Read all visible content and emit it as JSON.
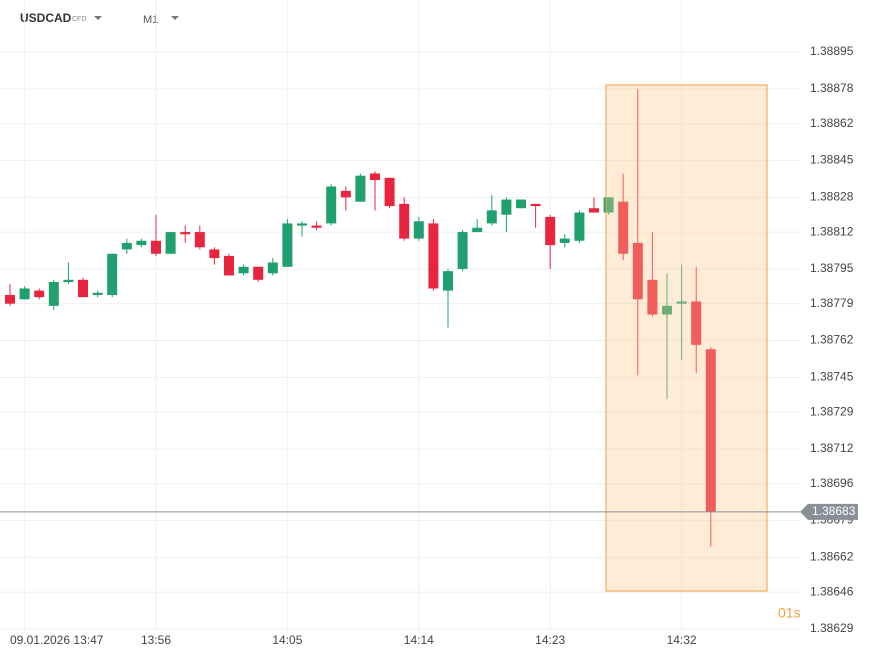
{
  "chart_data": {
    "type": "candlestick",
    "symbol": "USDCAD",
    "symbol_type": "CFD",
    "timeframe": "M1",
    "countdown": "01s",
    "current_price": 1.38683,
    "up_color": "#1fa06e",
    "down_color": "#e8253f",
    "grid": true,
    "ylim": [
      1.38629,
      1.38919
    ],
    "yticks": [
      1.38895,
      1.38878,
      1.38862,
      1.38845,
      1.38828,
      1.38812,
      1.38795,
      1.38779,
      1.38762,
      1.38745,
      1.38729,
      1.38712,
      1.38696,
      1.38679,
      1.38662,
      1.38646,
      1.38629
    ],
    "categories": [
      null,
      "09.01.2026 13:47",
      null,
      null,
      null,
      null,
      null,
      null,
      null,
      null,
      "13:56",
      null,
      null,
      null,
      null,
      null,
      null,
      null,
      null,
      "14:05",
      null,
      null,
      null,
      null,
      null,
      null,
      null,
      null,
      "14:14",
      null,
      null,
      null,
      null,
      null,
      null,
      null,
      null,
      "14:23",
      null,
      null,
      null,
      null,
      null,
      null,
      null,
      null,
      "14:32",
      null,
      null
    ],
    "open": [
      1.38783,
      1.38781,
      1.38785,
      1.38778,
      1.38789,
      1.3879,
      1.38783,
      1.38783,
      1.38804,
      1.38806,
      1.38808,
      1.38802,
      1.38812,
      1.38812,
      1.38804,
      1.38801,
      1.38793,
      1.38796,
      1.38793,
      1.38796,
      1.38815,
      1.38815,
      1.38816,
      1.38831,
      1.38826,
      1.38839,
      1.38837,
      1.38825,
      1.38809,
      1.38816,
      1.38785,
      1.38795,
      1.38812,
      1.38816,
      1.3882,
      1.38823,
      1.38825,
      1.38819,
      1.38807,
      1.38808,
      1.38823,
      1.38821,
      1.38826,
      1.38807,
      1.3879,
      1.38774,
      1.38779,
      1.3878,
      1.38758
    ],
    "high": [
      1.38788,
      1.38787,
      1.38786,
      1.3879,
      1.38798,
      1.38791,
      1.38785,
      1.38802,
      1.38809,
      1.38809,
      1.3882,
      1.38812,
      1.38815,
      1.38815,
      1.38805,
      1.38802,
      1.38797,
      1.38796,
      1.388,
      1.38818,
      1.38817,
      1.38817,
      1.38834,
      1.38833,
      1.38839,
      1.3884,
      1.38837,
      1.38828,
      1.38819,
      1.38818,
      1.38795,
      1.38813,
      1.38818,
      1.38829,
      1.38828,
      1.38827,
      1.38825,
      1.3882,
      1.38811,
      1.38822,
      1.38828,
      1.38828,
      1.38839,
      1.38878,
      1.38812,
      1.38793,
      1.38797,
      1.38796,
      1.38759
    ],
    "low": [
      1.38778,
      1.38781,
      1.38781,
      1.38776,
      1.38788,
      1.38782,
      1.38782,
      1.38782,
      1.38802,
      1.38805,
      1.38801,
      1.38802,
      1.38807,
      1.38804,
      1.38797,
      1.38792,
      1.38792,
      1.38789,
      1.38792,
      1.38796,
      1.3881,
      1.38813,
      1.38815,
      1.38822,
      1.38826,
      1.38822,
      1.38823,
      1.38808,
      1.38808,
      1.38785,
      1.38768,
      1.38794,
      1.38812,
      1.38815,
      1.38812,
      1.38823,
      1.38814,
      1.38795,
      1.38805,
      1.38807,
      1.38821,
      1.3882,
      1.38799,
      1.38746,
      1.38773,
      1.38735,
      1.38753,
      1.38747,
      1.38667
    ],
    "close": [
      1.38779,
      1.38786,
      1.38782,
      1.38789,
      1.3879,
      1.38782,
      1.38784,
      1.38802,
      1.38807,
      1.38808,
      1.38802,
      1.38812,
      1.38811,
      1.38805,
      1.388,
      1.38792,
      1.38796,
      1.3879,
      1.38798,
      1.38816,
      1.38816,
      1.38814,
      1.38833,
      1.38828,
      1.38838,
      1.38836,
      1.38824,
      1.38809,
      1.38817,
      1.38786,
      1.38794,
      1.38812,
      1.38814,
      1.38822,
      1.38827,
      1.38827,
      1.38824,
      1.38806,
      1.38809,
      1.38821,
      1.38821,
      1.38828,
      1.38802,
      1.38781,
      1.38774,
      1.38778,
      1.3878,
      1.3876,
      1.38683
    ]
  }
}
